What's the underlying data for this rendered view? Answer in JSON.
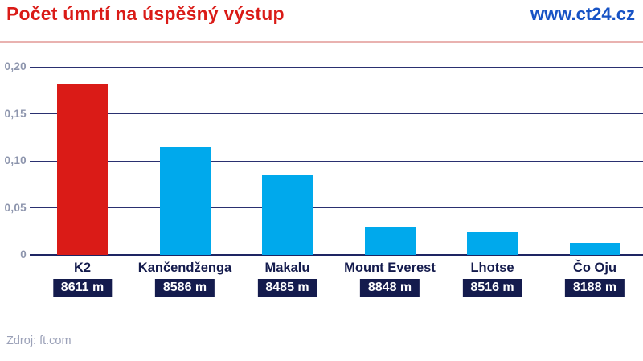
{
  "header": {
    "title": "Počet úmrtí na úspěšný výstup",
    "site": "www.ct24.cz"
  },
  "footer": {
    "source": "Zdroj: ft.com"
  },
  "colors": {
    "title_red": "#da1b17",
    "site_blue": "#1753c5",
    "bar_red": "#da1b17",
    "bar_blue": "#00a9ec",
    "navy_text": "#141b4d",
    "grid_navy": "#2a3070",
    "tick_gray": "#8d95ad",
    "source_gray": "#9ba1b8"
  },
  "chart_data": {
    "type": "bar",
    "title": "Počet úmrtí na úspěšný výstup",
    "xlabel": "",
    "ylabel": "",
    "categories": [
      "K2",
      "Kančendženga",
      "Makalu",
      "Mount Everest",
      "Lhotse",
      "Čo Oju"
    ],
    "altitudes": [
      "8611 m",
      "8586 m",
      "8485 m",
      "8848 m",
      "8516 m",
      "8188 m"
    ],
    "values": [
      0.182,
      0.115,
      0.085,
      0.03,
      0.024,
      0.013
    ],
    "bar_colors": [
      "#da1b17",
      "#00a9ec",
      "#00a9ec",
      "#00a9ec",
      "#00a9ec",
      "#00a9ec"
    ],
    "ylim": [
      0,
      0.2
    ],
    "ytick_values": [
      0,
      0.05,
      0.1,
      0.15,
      0.2
    ],
    "ytick_labels": [
      "0",
      "0,05",
      "0,10",
      "0,15",
      "0,20"
    ],
    "grid": true,
    "legend": false,
    "decimal_separator": ","
  }
}
